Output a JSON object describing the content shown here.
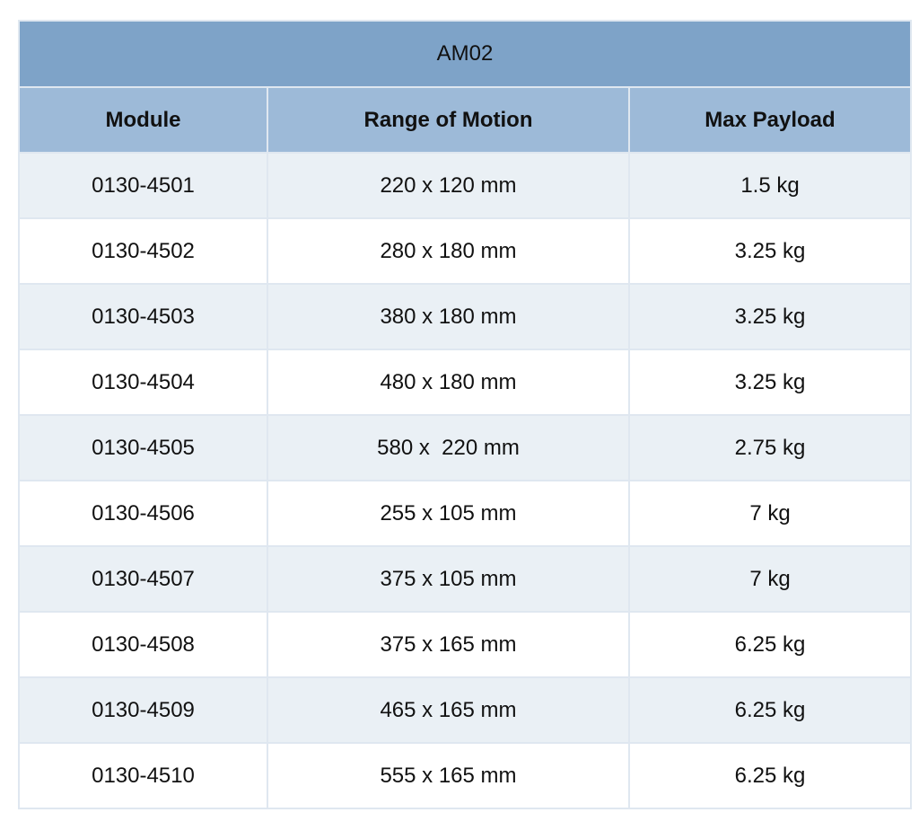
{
  "table": {
    "title": "AM02",
    "headers": [
      "Module",
      "Range of Motion",
      "Max Payload"
    ],
    "rows": [
      [
        "0130-4501",
        "220 x 120 mm",
        "1.5 kg"
      ],
      [
        "0130-4502",
        "280 x 180 mm",
        "3.25 kg"
      ],
      [
        "0130-4503",
        "380 x 180 mm",
        "3.25 kg"
      ],
      [
        "0130-4504",
        "480 x 180 mm",
        "3.25 kg"
      ],
      [
        "0130-4505",
        "580 x  220 mm",
        "2.75 kg"
      ],
      [
        "0130-4506",
        "255 x 105 mm",
        "7 kg"
      ],
      [
        "0130-4507",
        "375 x 105 mm",
        "7 kg"
      ],
      [
        "0130-4508",
        "375 x 165 mm",
        "6.25 kg"
      ],
      [
        "0130-4509",
        "465 x 165 mm",
        "6.25 kg"
      ],
      [
        "0130-4510",
        "555 x 165 mm",
        "6.25 kg"
      ]
    ],
    "colors": {
      "title_bg": "#7ea3c8",
      "header_bg": "#9dbad8",
      "row_shaded_bg": "#eaf0f5",
      "row_plain_bg": "#ffffff",
      "border": "#dfe7f0"
    }
  }
}
